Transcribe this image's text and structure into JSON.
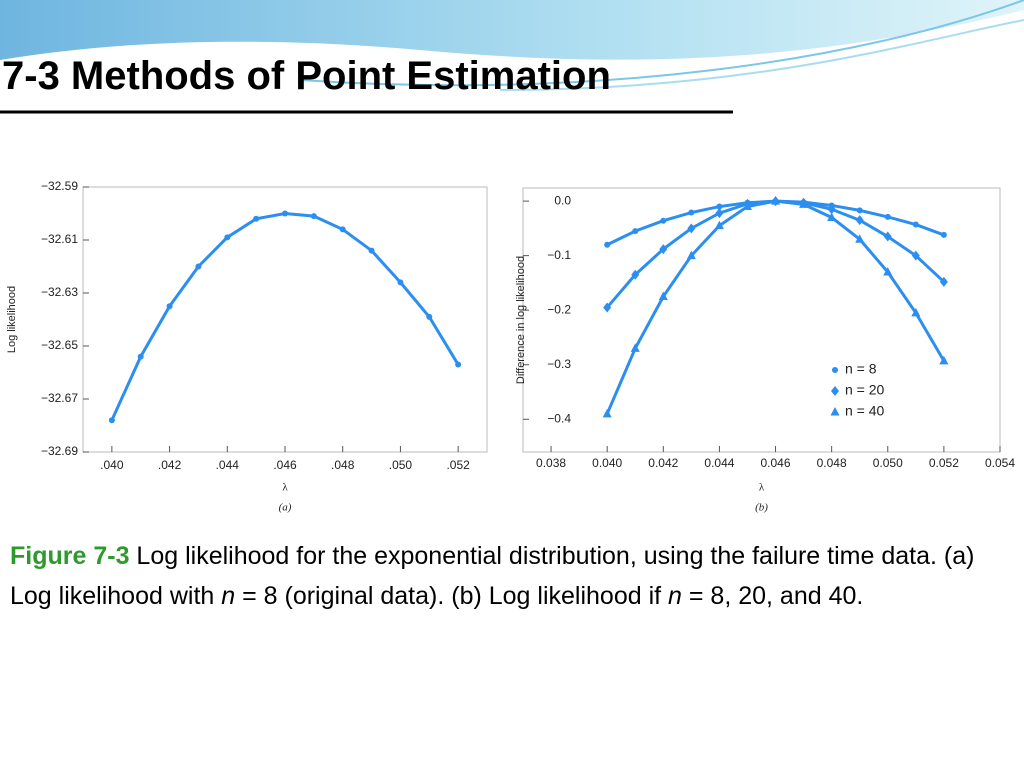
{
  "slide_title": "7-3 Methods of Point Estimation",
  "chart_data": [
    {
      "type": "line",
      "ylabel": "Log likelihood",
      "xlabel": "λ",
      "panel": "(a)",
      "color": "#2b8ef0",
      "grid": false,
      "x": [
        0.04,
        0.041,
        0.042,
        0.043,
        0.044,
        0.045,
        0.046,
        0.047,
        0.048,
        0.049,
        0.05,
        0.051,
        0.052
      ],
      "series": [
        {
          "name": null,
          "color": "#2b8ef0",
          "marker": "circle",
          "values": [
            -32.678,
            -32.654,
            -32.635,
            -32.62,
            -32.609,
            -32.602,
            -32.6,
            -32.601,
            -32.606,
            -32.614,
            -32.626,
            -32.639,
            -32.657
          ]
        }
      ],
      "xlim": [
        0.039,
        0.053
      ],
      "xticks": [
        {
          "value": 0.04,
          "label": ".040"
        },
        {
          "value": 0.042,
          "label": ".042"
        },
        {
          "value": 0.044,
          "label": ".044"
        },
        {
          "value": 0.046,
          "label": ".046"
        },
        {
          "value": 0.048,
          "label": ".048"
        },
        {
          "value": 0.05,
          "label": ".050"
        },
        {
          "value": 0.052,
          "label": ".052"
        }
      ],
      "ylim": [
        -32.69,
        -32.59
      ],
      "yticks": [
        {
          "value": -32.59,
          "label": "−32.59"
        },
        {
          "value": -32.61,
          "label": "−32.61"
        },
        {
          "value": -32.63,
          "label": "−32.63"
        },
        {
          "value": -32.65,
          "label": "−32.65"
        },
        {
          "value": -32.67,
          "label": "−32.67"
        },
        {
          "value": -32.69,
          "label": "−32.69"
        }
      ]
    },
    {
      "type": "line",
      "ylabel": "Difference in log likelihood",
      "xlabel": "λ",
      "panel": "(b)",
      "grid": false,
      "legend": "lower right",
      "x": [
        0.04,
        0.041,
        0.042,
        0.043,
        0.044,
        0.045,
        0.046,
        0.047,
        0.048,
        0.049,
        0.05,
        0.051,
        0.052
      ],
      "series": [
        {
          "name": "n = 8",
          "color": "#2b8ef0",
          "marker": "circle",
          "values": [
            -0.08,
            -0.055,
            -0.036,
            -0.021,
            -0.01,
            -0.003,
            0,
            -0.002,
            -0.008,
            -0.017,
            -0.029,
            -0.043,
            -0.062
          ]
        },
        {
          "name": "n = 20",
          "color": "#2b8ef0",
          "marker": "diamond",
          "values": [
            -0.195,
            -0.135,
            -0.088,
            -0.05,
            -0.022,
            -0.005,
            0,
            -0.003,
            -0.015,
            -0.035,
            -0.065,
            -0.1,
            -0.148
          ]
        },
        {
          "name": "n = 40",
          "color": "#2b8ef0",
          "marker": "triangle",
          "values": [
            -0.39,
            -0.27,
            -0.175,
            -0.1,
            -0.045,
            -0.01,
            0,
            -0.006,
            -0.03,
            -0.07,
            -0.13,
            -0.205,
            -0.293
          ]
        }
      ],
      "xlim": [
        0.037,
        0.054
      ],
      "xticks": [
        {
          "value": 0.038,
          "label": "0.038"
        },
        {
          "value": 0.04,
          "label": "0.040"
        },
        {
          "value": 0.042,
          "label": "0.042"
        },
        {
          "value": 0.044,
          "label": "0.044"
        },
        {
          "value": 0.046,
          "label": "0.046"
        },
        {
          "value": 0.048,
          "label": "0.048"
        },
        {
          "value": 0.05,
          "label": "0.050"
        },
        {
          "value": 0.052,
          "label": "0.052"
        },
        {
          "value": 0.054,
          "label": "0.054"
        }
      ],
      "ylim": [
        -0.46,
        0.024
      ],
      "yticks": [
        {
          "value": 0,
          "label": "0.0"
        },
        {
          "value": -0.1,
          "label": "−0.1"
        },
        {
          "value": -0.2,
          "label": "−0.2"
        },
        {
          "value": -0.3,
          "label": "−0.3"
        },
        {
          "value": -0.4,
          "label": "−0.4"
        }
      ]
    }
  ],
  "caption": {
    "label": "Figure 7-3",
    "segments": [
      " Log likelihood for the exponential distribution, using the failure time data. (a) Log likelihood with ",
      "n",
      " = 8 (original data). (b) Log likelihood if ",
      "n",
      " = 8, 20, and 40."
    ]
  }
}
